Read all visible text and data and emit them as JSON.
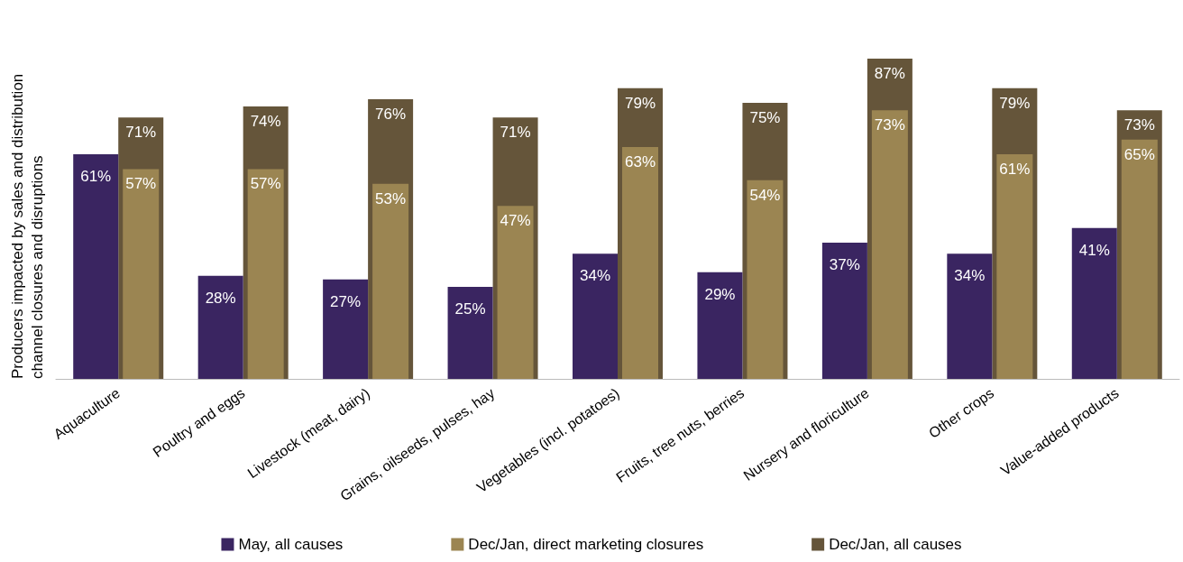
{
  "chart_data": {
    "type": "bar",
    "ylabel": "Producers impacted by sales and distribution channel closures and disruptions",
    "categories": [
      "Aquaculture",
      "Poultry and eggs",
      "Livestock (meat, dairy)",
      "Grains, oilseeds, pulses, hay",
      "Vegetables (incl. potatoes)",
      "Fruits, tree nuts, berries",
      "Nursery and floriculture",
      "Other crops",
      "Value-added products"
    ],
    "series": [
      {
        "name": "May, all causes",
        "color": "#3a2561",
        "values": [
          61,
          28,
          27,
          25,
          34,
          29,
          37,
          34,
          41
        ],
        "value_labels": [
          "61%",
          "28%",
          "27%",
          "25%",
          "34%",
          "29%",
          "37%",
          "34%",
          "41%"
        ]
      },
      {
        "name": "Dec/Jan, direct marketing closures",
        "color": "#9b8552",
        "values": [
          57,
          57,
          53,
          47,
          63,
          54,
          73,
          61,
          65
        ],
        "value_labels": [
          "57%",
          "57%",
          "53%",
          "47%",
          "63%",
          "54%",
          "73%",
          "61%",
          "65%"
        ]
      },
      {
        "name": "Dec/Jan, all causes",
        "color": "#65553a",
        "values": [
          71,
          74,
          76,
          71,
          79,
          75,
          87,
          79,
          73
        ],
        "value_labels": [
          "71%",
          "74%",
          "76%",
          "71%",
          "79%",
          "75%",
          "87%",
          "79%",
          "73%"
        ]
      }
    ],
    "legend": "bottom"
  }
}
